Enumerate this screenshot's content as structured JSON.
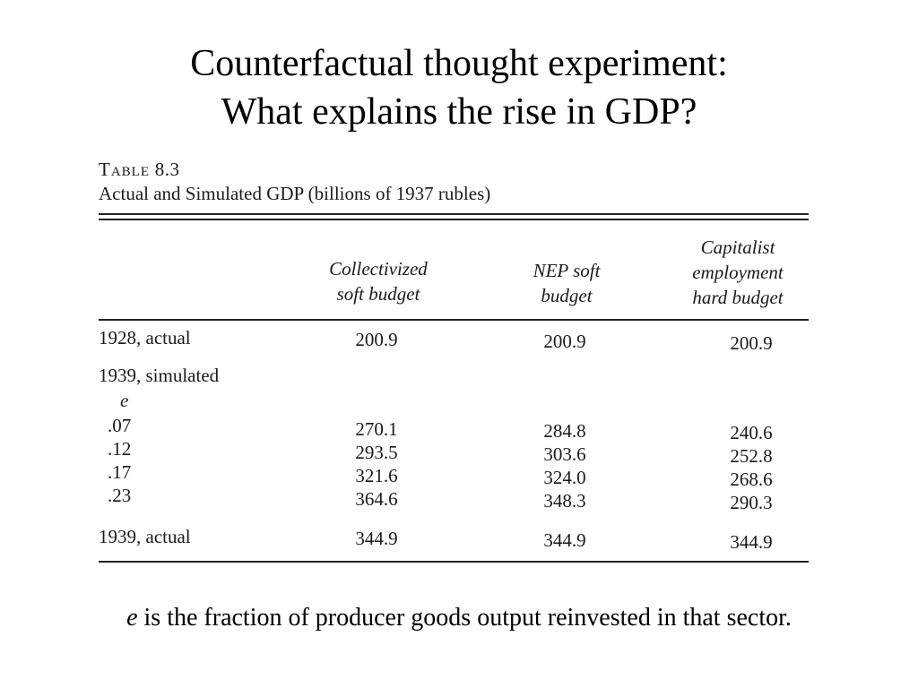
{
  "title": {
    "line1": "Counterfactual thought experiment:",
    "line2": "What explains the rise in GDP?"
  },
  "table": {
    "caption_prefix": "Table",
    "caption_number": "8.3",
    "caption_text": "Actual and Simulated GDP (billions of 1937 rubles)",
    "columns": [
      "Collectivized\nsoft budget",
      "NEP soft\nbudget",
      "Capitalist\nemployment\nhard budget"
    ],
    "rows": [
      {
        "label": "1928, actual",
        "values": [
          "200.9",
          "200.9",
          "200.9"
        ]
      },
      {
        "label": "1939, simulated",
        "values": [
          "",
          "",
          ""
        ]
      },
      {
        "label": "e",
        "values": [
          "",
          "",
          ""
        ]
      },
      {
        "label": ".07",
        "values": [
          "270.1",
          "284.8",
          "240.6"
        ]
      },
      {
        "label": ".12",
        "values": [
          "293.5",
          "303.6",
          "252.8"
        ]
      },
      {
        "label": ".17",
        "values": [
          "321.6",
          "324.0",
          "268.6"
        ]
      },
      {
        "label": ".23",
        "values": [
          "364.6",
          "348.3",
          "290.3"
        ]
      },
      {
        "label": "1939, actual",
        "values": [
          "344.9",
          "344.9",
          "344.9"
        ]
      }
    ]
  },
  "footnote": {
    "variable": "e",
    "text": " is the fraction of producer goods output reinvested in that sector."
  }
}
